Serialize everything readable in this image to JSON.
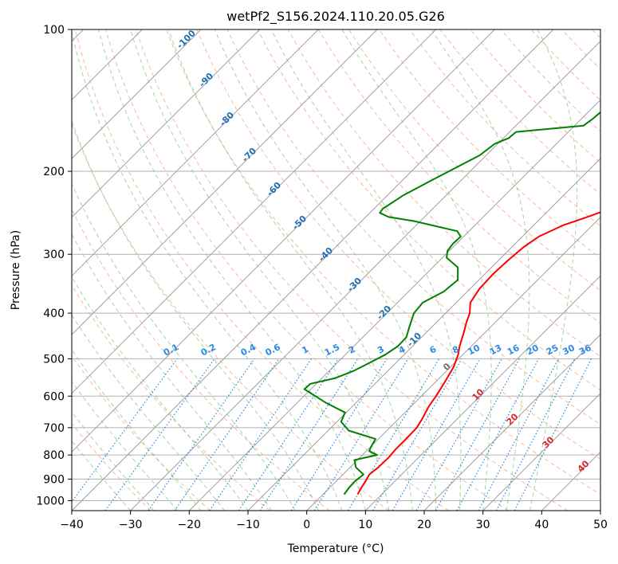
{
  "chart_data": {
    "type": "skew-t",
    "title": "wetPf2_S156.2024.110.20.05.G26",
    "xlabel": "Temperature (°C)",
    "ylabel": "Pressure (hPa)",
    "xlim": [
      -40,
      50
    ],
    "ylim": [
      1050,
      100
    ],
    "y_scale": "log",
    "grid": true,
    "x_ticks": [
      "−40",
      "−30",
      "−20",
      "−10",
      "0",
      "10",
      "20",
      "30",
      "40",
      "50"
    ],
    "y_ticks": [
      "100",
      "200",
      "300",
      "400",
      "500",
      "600",
      "700",
      "800",
      "900",
      "1000"
    ],
    "series": [
      {
        "color": "#ff0000",
        "points": [
          [
            5.9,
            970
          ],
          [
            5.4,
            940
          ],
          [
            5.0,
            910
          ],
          [
            4.5,
            880
          ],
          [
            4.8,
            850
          ],
          [
            4.9,
            810
          ],
          [
            4.7,
            780
          ],
          [
            4.7,
            740
          ],
          [
            4.6,
            700
          ],
          [
            4.0,
            670
          ],
          [
            3.0,
            630
          ],
          [
            2.5,
            600
          ],
          [
            1.6,
            560
          ],
          [
            0.5,
            520
          ],
          [
            -0.8,
            490
          ],
          [
            -2.0,
            470
          ],
          [
            -3.6,
            440
          ],
          [
            -4.8,
            420
          ],
          [
            -5.9,
            400
          ],
          [
            -7.6,
            380
          ],
          [
            -8.4,
            355
          ],
          [
            -8.6,
            330
          ],
          [
            -8.4,
            310
          ],
          [
            -8.0,
            290
          ],
          [
            -7.2,
            275
          ],
          [
            -4.9,
            260
          ],
          [
            -2.3,
            250
          ],
          [
            -0.5,
            243
          ],
          [
            4.0,
            230
          ],
          [
            7.5,
            215
          ],
          [
            8.2,
            200
          ],
          [
            10.1,
            185
          ],
          [
            11.2,
            175
          ],
          [
            12.3,
            165
          ],
          [
            13.4,
            155
          ],
          [
            14.0,
            145
          ],
          [
            14.0,
            135
          ],
          [
            14.0,
            125
          ],
          [
            15.0,
            115
          ],
          [
            16.0,
            108
          ],
          [
            16.8,
            100
          ]
        ]
      },
      {
        "color": "#008000",
        "points": [
          [
            3.6,
            970
          ],
          [
            3.3,
            940
          ],
          [
            3.2,
            910
          ],
          [
            3.5,
            880
          ],
          [
            1.0,
            850
          ],
          [
            -0.5,
            820
          ],
          [
            2.5,
            800
          ],
          [
            0.5,
            785
          ],
          [
            0.1,
            770
          ],
          [
            -0.5,
            740
          ],
          [
            -6.5,
            710
          ],
          [
            -9.3,
            680
          ],
          [
            -10.2,
            650
          ],
          [
            -15.1,
            620
          ],
          [
            -21.1,
            580
          ],
          [
            -21.0,
            565
          ],
          [
            -17.8,
            550
          ],
          [
            -15.8,
            530
          ],
          [
            -14.5,
            510
          ],
          [
            -13.2,
            490
          ],
          [
            -12.5,
            470
          ],
          [
            -12.6,
            450
          ],
          [
            -14.0,
            425
          ],
          [
            -15.4,
            400
          ],
          [
            -15.7,
            380
          ],
          [
            -14.0,
            360
          ],
          [
            -13.6,
            340
          ],
          [
            -15.7,
            320
          ],
          [
            -19.3,
            305
          ],
          [
            -20.3,
            295
          ],
          [
            -20.6,
            285
          ],
          [
            -20.5,
            275
          ],
          [
            -22.0,
            268
          ],
          [
            -31.1,
            255
          ],
          [
            -36.1,
            250
          ],
          [
            -38.3,
            245
          ],
          [
            -38.5,
            240
          ],
          [
            -38.1,
            235
          ],
          [
            -37.3,
            225
          ],
          [
            -35.2,
            210
          ],
          [
            -31.1,
            185
          ],
          [
            -30.5,
            175
          ],
          [
            -29.1,
            170
          ],
          [
            -28.9,
            165
          ],
          [
            -18.5,
            160
          ],
          [
            -18.1,
            155
          ],
          [
            -17.9,
            150
          ],
          [
            -17.4,
            145
          ],
          [
            -17.1,
            140
          ],
          [
            -16.9,
            135
          ],
          [
            -15.9,
            130
          ],
          [
            -14.3,
            125
          ],
          [
            -13.6,
            120
          ],
          [
            -14.6,
            115
          ],
          [
            -16.9,
            110
          ],
          [
            -17.9,
            105
          ],
          [
            -19.1,
            100
          ]
        ]
      }
    ],
    "annotations": {
      "dry_adiabat_labels": [
        "-100",
        "-90",
        "-80",
        "-70",
        "-60",
        "-50",
        "-40",
        "-30",
        "-20",
        "-10",
        "0",
        "10",
        "20",
        "30",
        "40"
      ],
      "mixing_ratio_labels": [
        "0.1",
        "0.2",
        "0.4",
        "0.6",
        "1",
        "1.5",
        "2",
        "3",
        "4",
        "6",
        "8",
        "10",
        "13",
        "16",
        "20",
        "25",
        "30",
        "36"
      ]
    }
  },
  "colors": {
    "temperature": "#ff0000",
    "dewpoint": "#008000",
    "isotherm": "#a0a0a0",
    "isobar": "#b0b0b0",
    "dry_adiabat": "#f5a07a",
    "moist_adiabat": "#7fbf7f",
    "mixing_ratio": "#1e88e5",
    "dry_label_cold": "#1f6fb5",
    "dry_label_warm": "#d62728"
  }
}
